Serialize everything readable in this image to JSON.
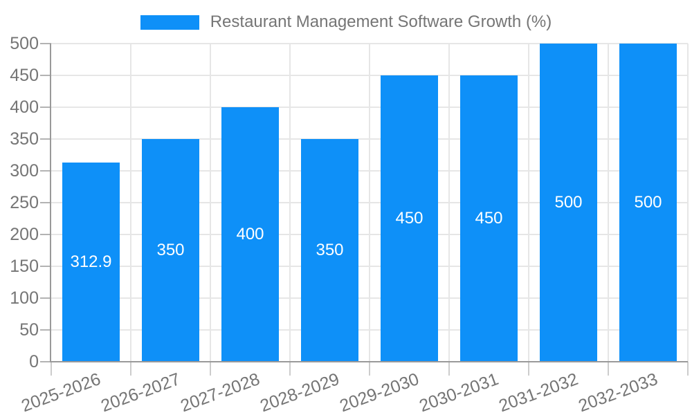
{
  "chart_data": {
    "type": "bar",
    "title": "Restaurant Management Software Growth (%)",
    "categories": [
      "2025-2026",
      "2026-2027",
      "2027-2028",
      "2028-2029",
      "2029-2030",
      "2030-2031",
      "2031-2032",
      "2032-2033"
    ],
    "series": [
      {
        "name": "Restaurant Management Software Growth (%)",
        "values": [
          312.9,
          350,
          400,
          350,
          450,
          450,
          500,
          500
        ],
        "data_labels": [
          "312.9",
          "350",
          "400",
          "350",
          "450",
          "450",
          "500",
          "500"
        ]
      }
    ],
    "xlabel": "",
    "ylabel": "",
    "ylim": [
      0,
      500
    ],
    "y_ticks": [
      0,
      50,
      100,
      150,
      200,
      250,
      300,
      350,
      400,
      450,
      500
    ],
    "grid": true,
    "legend_position": "top"
  },
  "colors": {
    "bar": "#0e90f8",
    "axis_text": "#757575",
    "bar_label_text": "#ffffff",
    "gridline": "#e6e6e6",
    "axis_line": "#999999",
    "background": "#ffffff"
  }
}
